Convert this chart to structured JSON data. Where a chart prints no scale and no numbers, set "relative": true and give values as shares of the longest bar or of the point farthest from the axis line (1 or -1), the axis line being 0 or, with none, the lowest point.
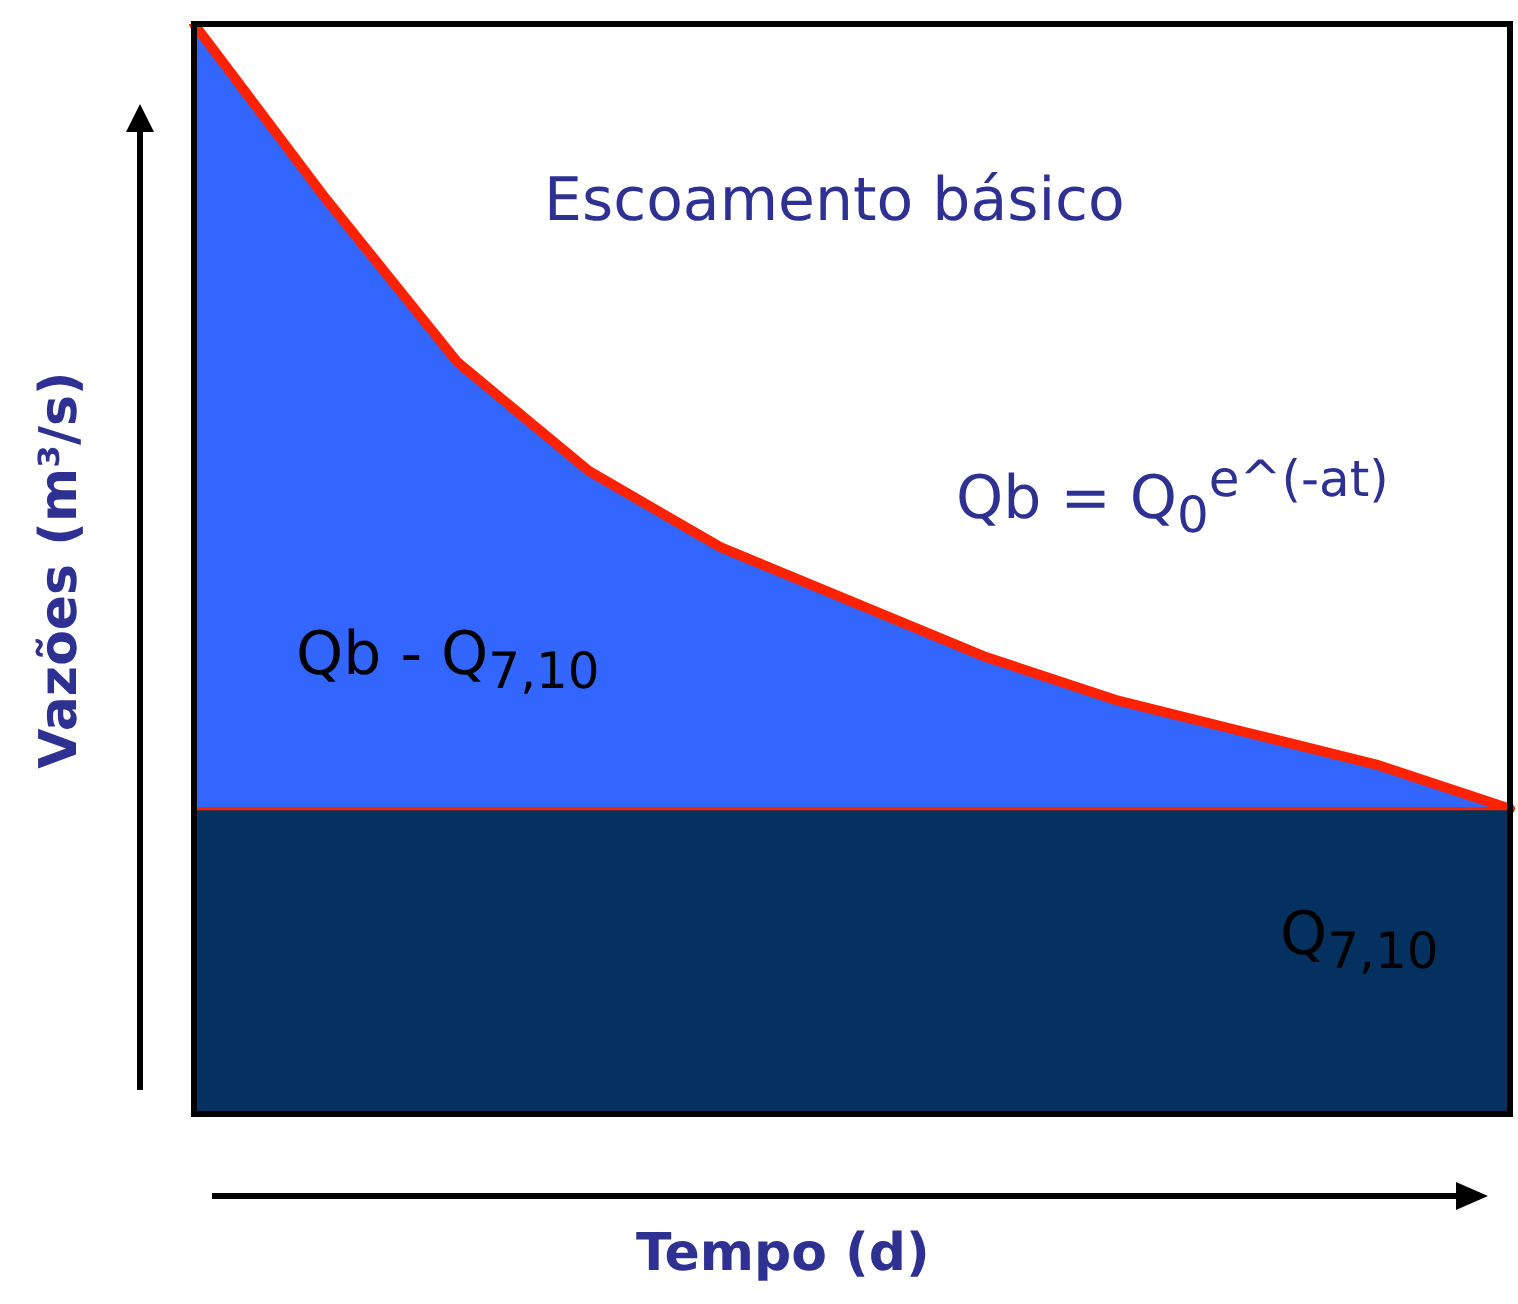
{
  "chart_data": {
    "type": "area",
    "relative": true,
    "xlabel": "Tempo (d)",
    "ylabel": "Vazões (m³/s)",
    "categories": [
      null,
      null,
      null,
      null,
      null,
      null,
      null,
      null,
      null,
      null,
      null
    ],
    "annotations": [
      "Escoamento básico",
      "Qb = Q$_{0}$$^{e^(-at)}$",
      "Qb - Q$_{7,10}$",
      "Q$_{7,10}$"
    ],
    "ref_lines": [
      {
        "axis": "y",
        "value": 0.28,
        "color": "#ff2200"
      }
    ],
    "series": [
      {
        "color": "#04315f",
        "values": [
          0.28,
          0.28,
          0.28,
          0.28,
          0.28,
          0.28,
          0.28,
          0.28,
          0.28,
          0.28,
          0.28
        ]
      },
      {
        "color": "#3366ff",
        "values": [
          1.0,
          0.84,
          0.69,
          0.59,
          0.52,
          0.47,
          0.42,
          0.38,
          0.35,
          0.32,
          0.28
        ]
      }
    ]
  }
}
